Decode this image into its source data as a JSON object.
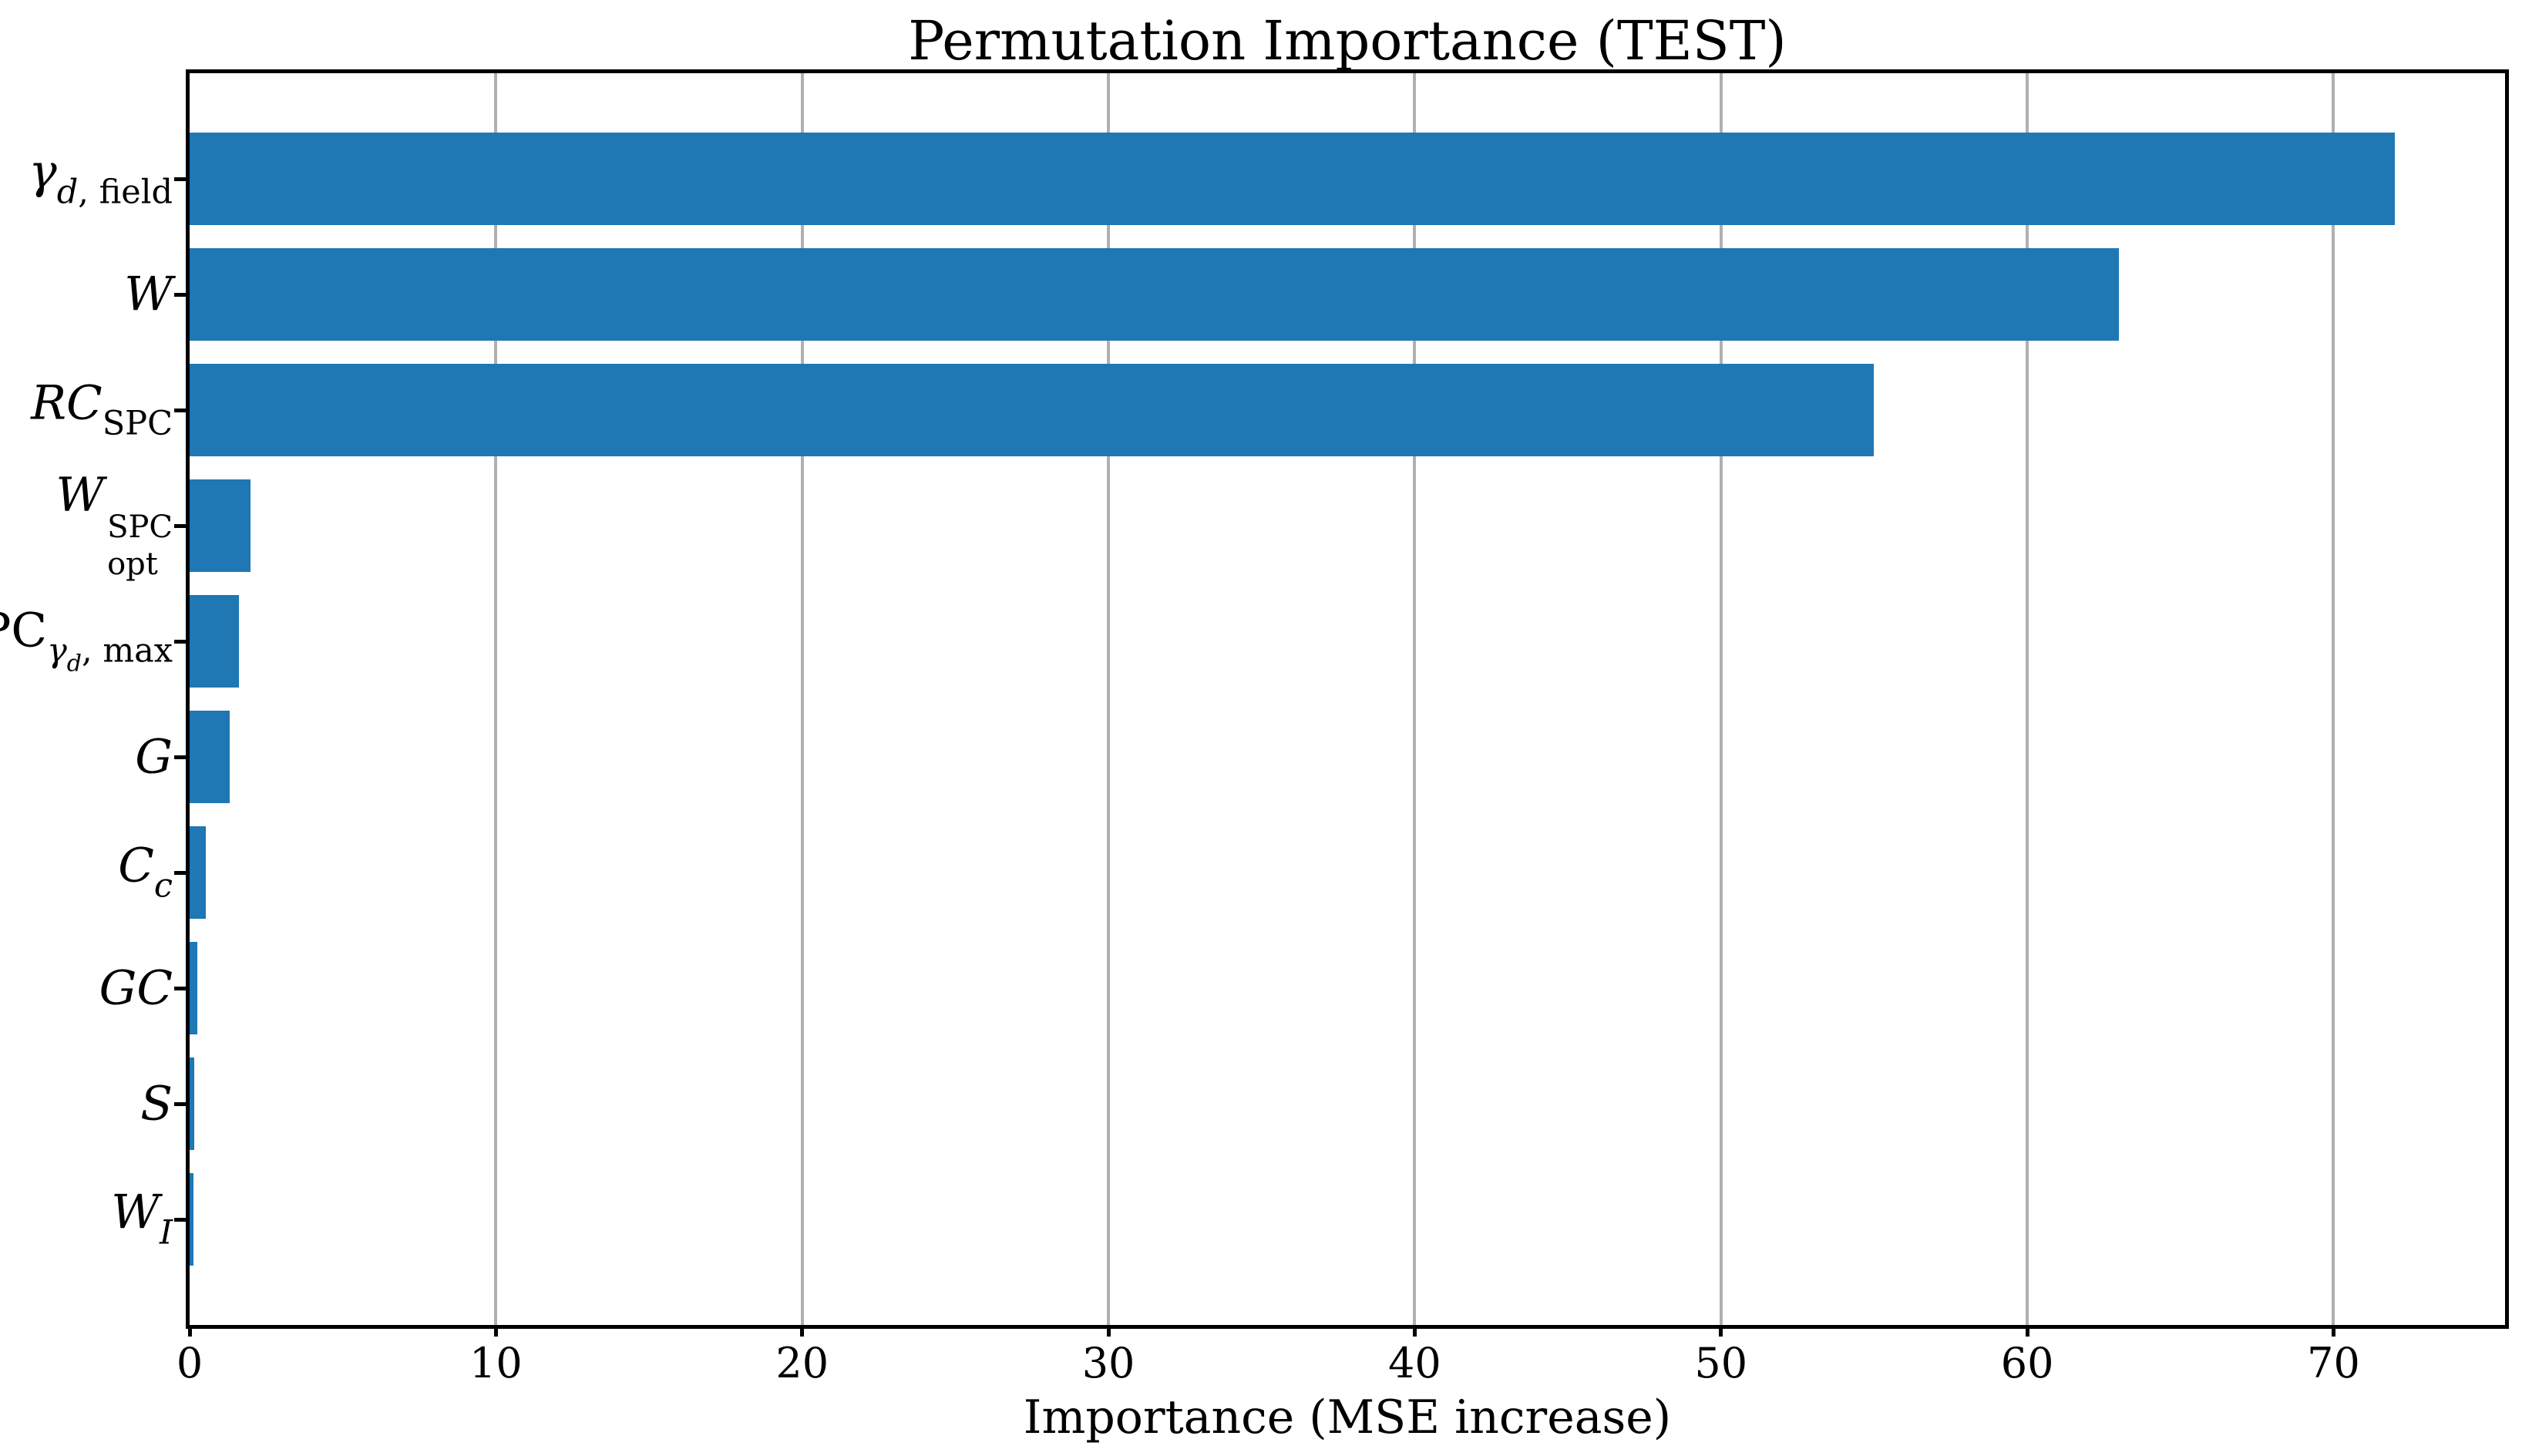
{
  "chart_data": {
    "type": "bar",
    "orientation": "horizontal",
    "title": "Permutation Importance (TEST)",
    "xlabel": "Importance (MSE increase)",
    "ylabel": "",
    "xlim": [
      0,
      75.6
    ],
    "xticks": [
      0,
      10,
      20,
      30,
      40,
      50,
      60,
      70
    ],
    "grid": "vertical",
    "legend": "none",
    "grid_color": "#b0b0b0",
    "bar_color": "#1f77b4",
    "axis_color": "#000000",
    "background_color": "#ffffff",
    "categories": [
      "γ_{d, field}",
      "W",
      "RC_{SPC}",
      "W_{opt}^{SPC}",
      "SPC_{γ_{d}, max}",
      "G",
      "C_{c}",
      "GC",
      "S",
      "W_{I}"
    ],
    "values": [
      72,
      63,
      55,
      2.0,
      1.6,
      1.3,
      0.53,
      0.25,
      0.15,
      0.12
    ],
    "bars": [
      {
        "id": "gamma_d_field",
        "value": 72,
        "label_segments": [
          {
            "t": "γ",
            "i": 1
          },
          {
            "t": "d",
            "i": 1,
            "p": "sub"
          },
          {
            "t": ", field",
            "p": "sub"
          }
        ]
      },
      {
        "id": "W",
        "value": 63,
        "label_segments": [
          {
            "t": "W",
            "i": 1
          }
        ]
      },
      {
        "id": "RC_SPC",
        "value": 55,
        "label_segments": [
          {
            "t": "RC",
            "i": 1
          },
          {
            "t": "SPC",
            "p": "sub"
          }
        ]
      },
      {
        "id": "W_opt_SPC",
        "value": 2.0,
        "label_segments": [
          {
            "t": "W",
            "i": 1
          },
          {
            "p": "stack",
            "sup": "SPC",
            "sub": "opt"
          }
        ]
      },
      {
        "id": "SPC_gamma_d_max",
        "value": 1.6,
        "label_segments": [
          {
            "t": "SPC"
          },
          {
            "t": "γ",
            "i": 1,
            "p": "sub"
          },
          {
            "t": "d",
            "i": 1,
            "p": "sub2"
          },
          {
            "t": ", max",
            "p": "sub"
          }
        ]
      },
      {
        "id": "G",
        "value": 1.3,
        "label_segments": [
          {
            "t": "G",
            "i": 1
          }
        ]
      },
      {
        "id": "C_c",
        "value": 0.53,
        "label_segments": [
          {
            "t": "C",
            "i": 1
          },
          {
            "t": "c",
            "i": 1,
            "p": "sub"
          }
        ]
      },
      {
        "id": "GC",
        "value": 0.25,
        "label_segments": [
          {
            "t": "GC",
            "i": 1
          }
        ]
      },
      {
        "id": "S",
        "value": 0.15,
        "label_segments": [
          {
            "t": "S",
            "i": 1
          }
        ]
      },
      {
        "id": "W_I",
        "value": 0.12,
        "label_segments": [
          {
            "t": "W",
            "i": 1
          },
          {
            "t": "I",
            "i": 1,
            "p": "sub"
          }
        ]
      }
    ]
  }
}
